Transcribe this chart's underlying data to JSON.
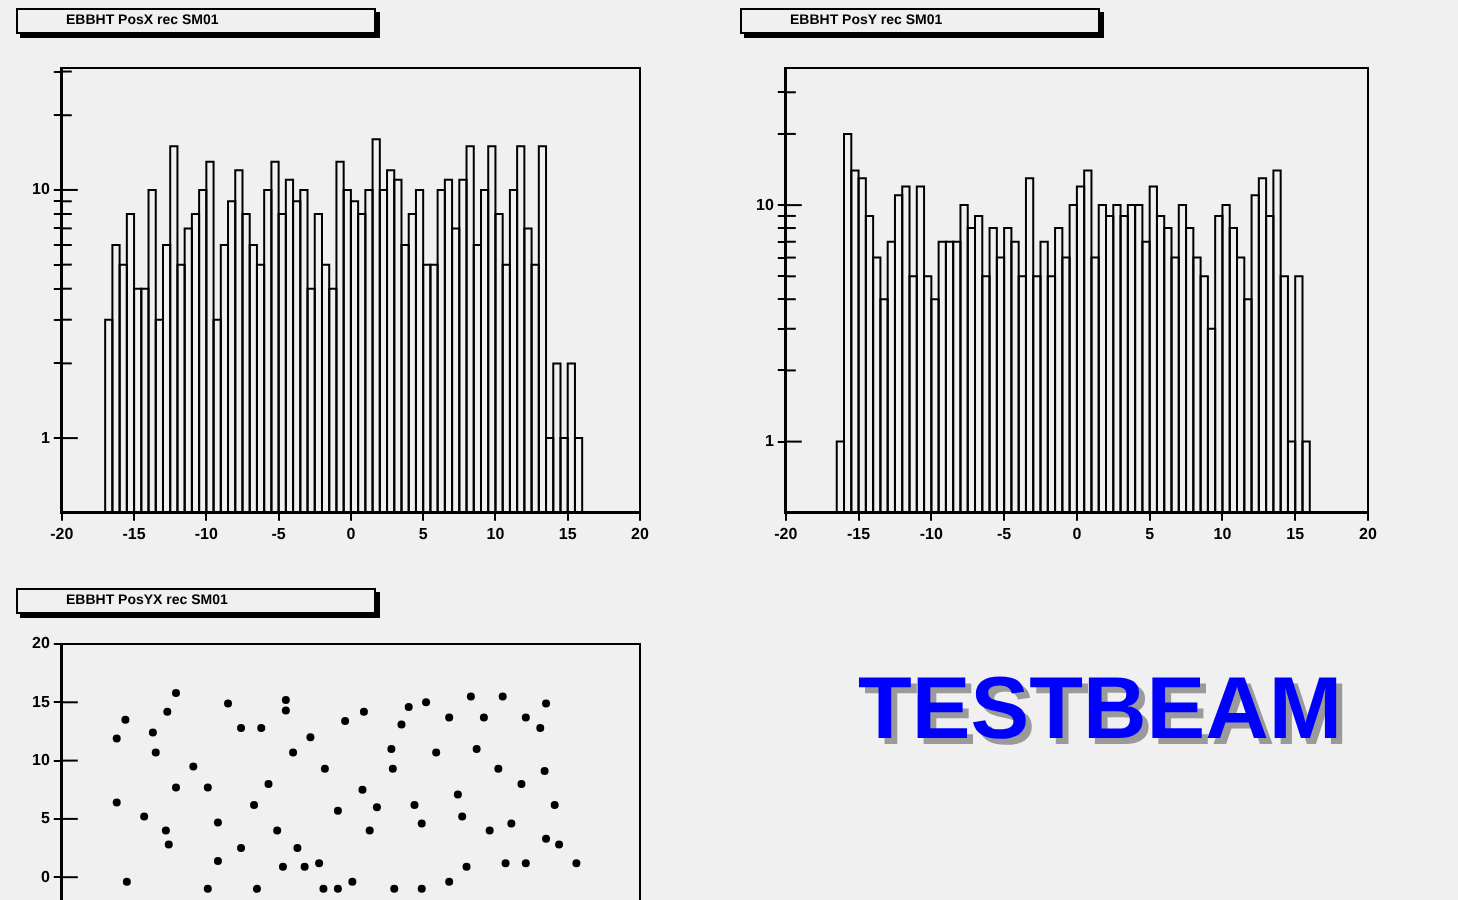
{
  "chart_data": [
    {
      "type": "histogram",
      "title": "EBBHT PosX rec SM01",
      "log": "y",
      "grid": false,
      "legend": false,
      "color": "#000000",
      "bins": [
        -17,
        -16.5,
        -16,
        -15.5,
        -15,
        -14.5,
        -14,
        -13.5,
        -13,
        -12.5,
        -12,
        -11.5,
        -11,
        -10.5,
        -10,
        -9.5,
        -9,
        -8.5,
        -8,
        -7.5,
        -7,
        -6.5,
        -6,
        -5.5,
        -5,
        -4.5,
        -4,
        -3.5,
        -3,
        -2.5,
        -2,
        -1.5,
        -1,
        -0.5,
        0,
        0.5,
        1,
        1.5,
        2,
        2.5,
        3,
        3.5,
        4,
        4.5,
        5,
        5.5,
        6,
        6.5,
        7,
        7.5,
        8,
        8.5,
        9,
        9.5,
        10,
        10.5,
        11,
        11.5,
        12,
        12.5,
        13,
        13.5,
        14,
        14.5,
        15,
        15.5,
        16
      ],
      "values": [
        3,
        6,
        5,
        8,
        4,
        4,
        10,
        3,
        6,
        15,
        5,
        7,
        8,
        10,
        13,
        3,
        6,
        9,
        12,
        8,
        6,
        5,
        10,
        13,
        8,
        11,
        9,
        10,
        4,
        8,
        5,
        4,
        13,
        10,
        9,
        8,
        10,
        16,
        10,
        12,
        11,
        6,
        8,
        10,
        5,
        5,
        10,
        11,
        7,
        11,
        15,
        6,
        10,
        15,
        8,
        5,
        10,
        15,
        7,
        5,
        15,
        1,
        2,
        1,
        2,
        1
      ],
      "xlim": [
        -20,
        20
      ],
      "xticks": [
        -20,
        -15,
        -10,
        -5,
        0,
        5,
        10,
        15,
        20
      ],
      "ylim": [
        0.5,
        31
      ],
      "yticks": [
        1,
        {
          "value": 2,
          "label": null
        },
        {
          "value": 3,
          "label": null
        },
        {
          "value": 4,
          "label": null
        },
        {
          "value": 5,
          "label": null
        },
        {
          "value": 6,
          "label": null
        },
        {
          "value": 7,
          "label": null
        },
        {
          "value": 8,
          "label": null
        },
        {
          "value": 9,
          "label": null
        },
        10,
        {
          "value": 20,
          "label": null
        },
        {
          "value": 30,
          "label": null
        }
      ]
    },
    {
      "type": "histogram",
      "title": "EBBHT PosY rec SM01",
      "log": "y",
      "grid": false,
      "legend": false,
      "color": "#000000",
      "bins": [
        -16.5,
        -16,
        -15.5,
        -15,
        -14.5,
        -14,
        -13.5,
        -13,
        -12.5,
        -12,
        -11.5,
        -11,
        -10.5,
        -10,
        -9.5,
        -9,
        -8.5,
        -8,
        -7.5,
        -7,
        -6.5,
        -6,
        -5.5,
        -5,
        -4.5,
        -4,
        -3.5,
        -3,
        -2.5,
        -2,
        -1.5,
        -1,
        -0.5,
        0,
        0.5,
        1,
        1.5,
        2,
        2.5,
        3,
        3.5,
        4,
        4.5,
        5,
        5.5,
        6,
        6.5,
        7,
        7.5,
        8,
        8.5,
        9,
        9.5,
        10,
        10.5,
        11,
        11.5,
        12,
        12.5,
        13,
        13.5,
        14,
        14.5,
        15,
        15.5,
        16
      ],
      "values": [
        1,
        20,
        14,
        13,
        9,
        6,
        4,
        7,
        11,
        12,
        5,
        12,
        5,
        4,
        7,
        7,
        7,
        10,
        8,
        9,
        5,
        8,
        6,
        8,
        7,
        5,
        13,
        5,
        7,
        5,
        8,
        6,
        10,
        12,
        14,
        6,
        10,
        9,
        10,
        9,
        10,
        10,
        7,
        12,
        9,
        8,
        6,
        10,
        8,
        6,
        5,
        3,
        9,
        10,
        8,
        6,
        4,
        11,
        13,
        9,
        14,
        5,
        1,
        5,
        1
      ],
      "xlim": [
        -20,
        20
      ],
      "xticks": [
        -20,
        -15,
        -10,
        -5,
        0,
        5,
        10,
        15,
        20
      ],
      "ylim": [
        0.5,
        38
      ],
      "yticks": [
        1,
        {
          "value": 2,
          "label": null
        },
        {
          "value": 3,
          "label": null
        },
        {
          "value": 4,
          "label": null
        },
        {
          "value": 5,
          "label": null
        },
        {
          "value": 6,
          "label": null
        },
        {
          "value": 7,
          "label": null
        },
        {
          "value": 8,
          "label": null
        },
        {
          "value": 9,
          "label": null
        },
        10,
        {
          "value": 20,
          "label": null
        },
        {
          "value": 30,
          "label": null
        }
      ]
    },
    {
      "type": "scatter",
      "title": "EBBHT PosYX rec SM01",
      "grid": false,
      "legend": false,
      "marker": "circle",
      "color": "#000000",
      "tick_labels": "y",
      "x": [
        -12.1,
        -16.2,
        -15.6,
        -12.7,
        -13.7,
        -8.5,
        -4.5,
        -4.5,
        -0.4,
        0.9,
        4.0,
        5.2,
        8.3,
        10.5,
        13.5,
        12.1,
        13.1,
        -16.2,
        -14.3,
        -12.8,
        -12.6,
        -10.9,
        -9.9,
        -9.2,
        -6.7,
        -5.1,
        -3.7,
        -4.7,
        -3.2,
        -2.2,
        -0.9,
        0.8,
        1.8,
        2.9,
        2.8,
        4.4,
        5.9,
        7.4,
        8.7,
        10.2,
        11.8,
        13.4,
        14.1,
        14.4,
        15.6,
        12.1,
        10.7,
        8.0,
        6.8,
        4.9,
        3.0,
        0.1,
        -1.9,
        -6.5,
        -9.9,
        -15.5,
        -9.2,
        -7.6,
        -5.7,
        -2.8,
        -1.8,
        -4.0,
        1.3,
        4.9,
        7.7,
        9.6,
        11.1,
        13.5,
        -12.1,
        -13.5,
        -7.6,
        -6.2,
        3.5,
        6.8,
        9.2,
        -0.9
      ],
      "values": [
        15.8,
        11.9,
        13.5,
        14.2,
        12.4,
        14.9,
        15.2,
        14.3,
        13.4,
        14.2,
        14.6,
        15.0,
        15.5,
        15.5,
        14.9,
        13.7,
        12.8,
        6.4,
        5.2,
        4.0,
        2.8,
        9.5,
        7.7,
        4.7,
        6.2,
        4.0,
        2.5,
        0.9,
        0.9,
        1.2,
        5.7,
        7.5,
        6.0,
        9.3,
        11.0,
        6.2,
        10.7,
        7.1,
        11.0,
        9.3,
        8.0,
        9.1,
        6.2,
        2.8,
        1.2,
        1.2,
        1.2,
        0.9,
        -0.4,
        -1.0,
        -1.0,
        -0.4,
        -1.0,
        -1.0,
        -1.0,
        -0.4,
        1.4,
        2.5,
        8.0,
        12.0,
        9.3,
        10.7,
        4.0,
        4.6,
        5.2,
        4.0,
        4.6,
        3.3,
        7.7,
        10.7,
        12.8,
        12.8,
        13.1,
        13.7,
        13.7,
        -1.0
      ],
      "xlim": [
        -20,
        20
      ],
      "ylim": [
        -20,
        20
      ],
      "yticks": [
        0,
        5,
        10,
        15,
        20
      ]
    },
    {
      "type": "other",
      "title": "TESTBEAM"
    }
  ]
}
